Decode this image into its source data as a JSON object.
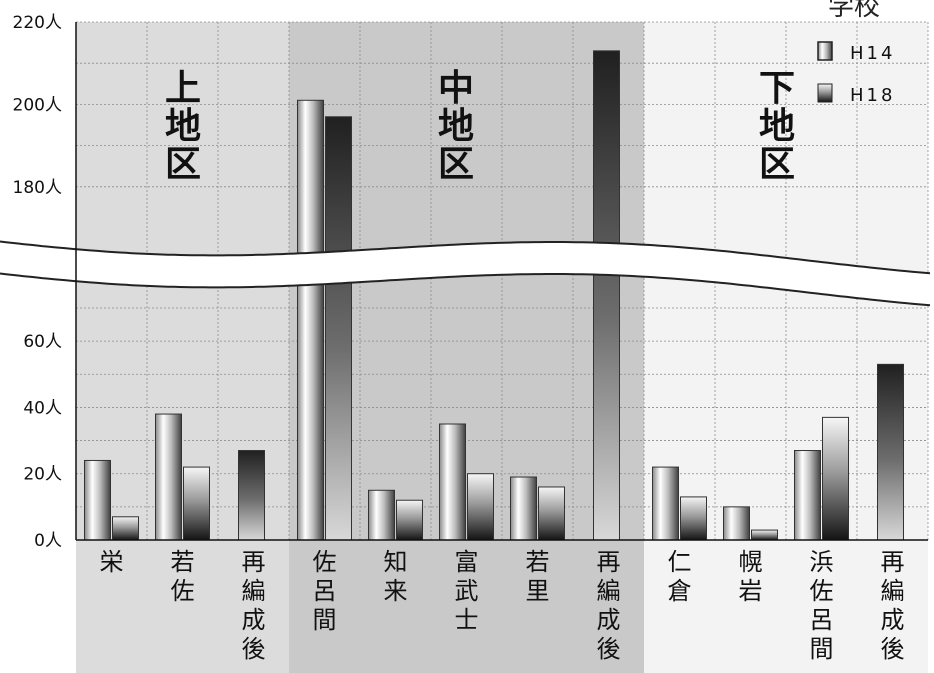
{
  "corner_note": "学校",
  "colors": {
    "h14_light": "#f2f2f2",
    "h14_dark": "#6a6a6a",
    "h18_light": "#f4f4f4",
    "h18_dark": "#1e1e1e",
    "region_upper": "#dcdcdc",
    "region_middle": "#c9c9c9",
    "region_lower": "#f3f3f3"
  },
  "chart_data": {
    "type": "bar",
    "subtype": "grouped bar with broken y-axis",
    "y_unit": "人",
    "ylim": [
      0,
      220
    ],
    "axis_break": {
      "from": 70,
      "to": 170
    },
    "y_ticks": [
      0,
      20,
      40,
      60,
      180,
      200,
      220
    ],
    "y_tick_labels": [
      "0人",
      "20人",
      "40人",
      "60人",
      "180人",
      "200人",
      "220人"
    ],
    "grid": true,
    "legend": {
      "position": "top-right",
      "entries": [
        "H14",
        "H18"
      ]
    },
    "series": [
      {
        "name": "H14",
        "values": [
          24,
          38,
          null,
          201,
          15,
          35,
          19,
          null,
          22,
          10,
          27,
          null
        ]
      },
      {
        "name": "H18",
        "values": [
          7,
          22,
          27,
          197,
          12,
          20,
          16,
          213,
          13,
          3,
          37,
          53
        ]
      }
    ],
    "categories": [
      "栄",
      "若佐",
      "再編成後",
      "佐呂間",
      "知来",
      "富武士",
      "若里",
      "再編成後",
      "仁倉",
      "幌岩",
      "浜佐呂間",
      "再編成後"
    ],
    "groups": [
      {
        "label": "上地区",
        "categories": [
          "栄",
          "若佐",
          "再編成後"
        ]
      },
      {
        "label": "中地区",
        "categories": [
          "佐呂間",
          "知来",
          "富武士",
          "若里",
          "再編成後"
        ]
      },
      {
        "label": "下地区",
        "categories": [
          "仁倉",
          "幌岩",
          "浜佐呂間",
          "再編成後"
        ]
      }
    ]
  }
}
